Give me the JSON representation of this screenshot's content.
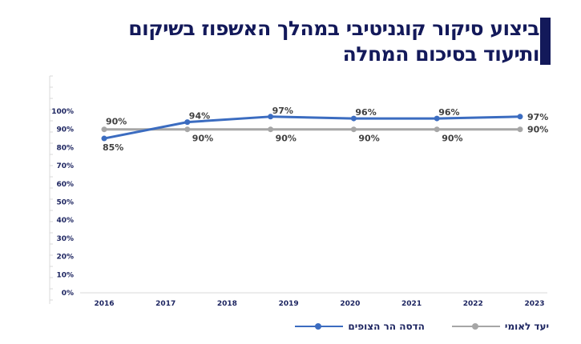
{
  "title": {
    "line1": "ביצוע סיקור קוגניטיבי במהלך האשפוז בשיקום",
    "line2": "ותיעוד בסיכום המחלה"
  },
  "colors": {
    "title": "#13195a",
    "series_hadassah": "#3b6cc0",
    "series_national": "#a6a6a6",
    "axis_text": "#1c2460"
  },
  "legend": [
    {
      "label": "יעד לאומי",
      "series": "national"
    },
    {
      "label": "הדסה הר הצופים",
      "series": "hadassah"
    }
  ],
  "chart_data": {
    "type": "line",
    "title": "ביצוע סיקור קוגניטיבי במהלך האשפוז בשיקום ותיעוד בסיכום המחלה",
    "xlabel": "",
    "ylabel": "",
    "x_tick_labels": [
      "2016",
      "2017",
      "2018",
      "2019",
      "2020",
      "2021",
      "2022",
      "2023"
    ],
    "y_tick_labels": [
      "0%",
      "10%",
      "20%",
      "30%",
      "40%",
      "50%",
      "60%",
      "70%",
      "80%",
      "90%",
      "100%"
    ],
    "ylim": [
      0,
      100
    ],
    "grid": false,
    "legend_position": "bottom-right",
    "point_count": 6,
    "series": [
      {
        "name": "הדסה הר הצופים",
        "key": "hadassah",
        "values": [
          85,
          94,
          97,
          96,
          96,
          97
        ],
        "labels": [
          "85%",
          "94%",
          "97%",
          "96%",
          "96%",
          "97%"
        ]
      },
      {
        "name": "יעד לאומי",
        "key": "national",
        "values": [
          90,
          90,
          90,
          90,
          90,
          90
        ],
        "labels": [
          "90%",
          "90%",
          "90%",
          "90%",
          "90%",
          "90%"
        ]
      }
    ]
  }
}
